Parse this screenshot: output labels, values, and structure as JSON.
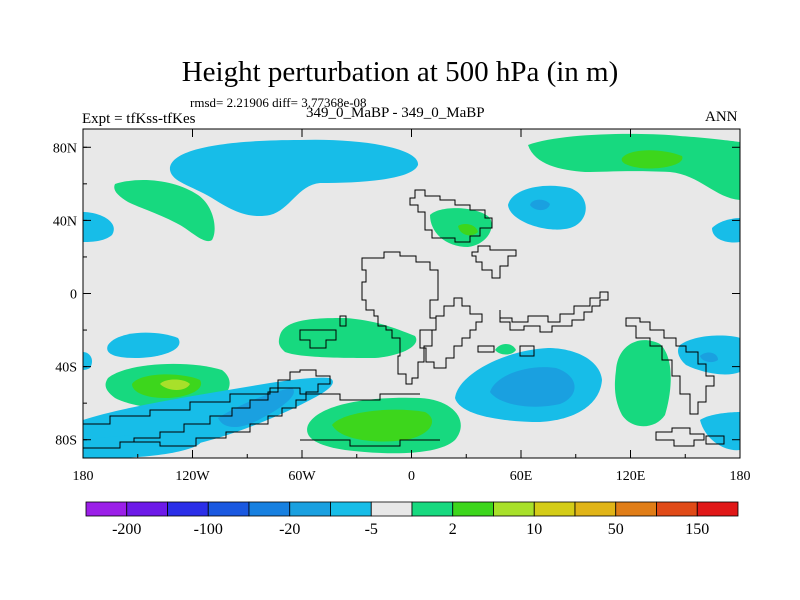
{
  "chart_data": {
    "type": "contour-map",
    "title": "Height perturbation at 500 hPa (in m)",
    "stats_line": "rmsd= 2.21906 diff= 3.77368e-08",
    "left_label": "Expt = tfKss-tfKes",
    "center_label": "349_0_MaBP - 349_0_MaBP",
    "right_label": "ANN",
    "lon_range": [
      -180,
      180
    ],
    "lat_range": [
      -90,
      90
    ],
    "x_ticks": [
      {
        "value": -180,
        "label": "180"
      },
      {
        "value": -120,
        "label": "120W"
      },
      {
        "value": -60,
        "label": "60W"
      },
      {
        "value": 0,
        "label": "0"
      },
      {
        "value": 60,
        "label": "60E"
      },
      {
        "value": 120,
        "label": "120E"
      },
      {
        "value": 180,
        "label": "180"
      }
    ],
    "y_ticks": [
      {
        "value": 80,
        "label": "80N"
      },
      {
        "value": 40,
        "label": "40N"
      },
      {
        "value": 0,
        "label": "0"
      },
      {
        "value": -40,
        "label": "40S"
      },
      {
        "value": -80,
        "label": "80S"
      }
    ],
    "colorbar": {
      "colors": [
        "#9b1fe8",
        "#6d1ae8",
        "#2b2ee8",
        "#1a58e0",
        "#1780e0",
        "#1aa0e0",
        "#17bde8",
        "#e8e8e8",
        "#17d97f",
        "#3dd61c",
        "#a8e02a",
        "#d4cc17",
        "#e0b417",
        "#e07d17",
        "#e04a17",
        "#e01717"
      ],
      "labels": [
        {
          "after_index": 1,
          "label": "-200"
        },
        {
          "after_index": 3,
          "label": "-100"
        },
        {
          "after_index": 5,
          "label": "-20"
        },
        {
          "after_index": 7,
          "label": "-5"
        },
        {
          "after_index": 9,
          "label": "2"
        },
        {
          "after_index": 11,
          "label": "10"
        },
        {
          "after_index": 13,
          "label": "50"
        },
        {
          "after_index": 15,
          "label": "150"
        }
      ]
    },
    "palette": {
      "background_field": "#e8e8e8",
      "light_blue": "#17bde8",
      "mid_blue": "#1aa0e0",
      "light_green": "#17d97f",
      "green": "#3dd61c",
      "yellow_green": "#a8e02a"
    }
  }
}
